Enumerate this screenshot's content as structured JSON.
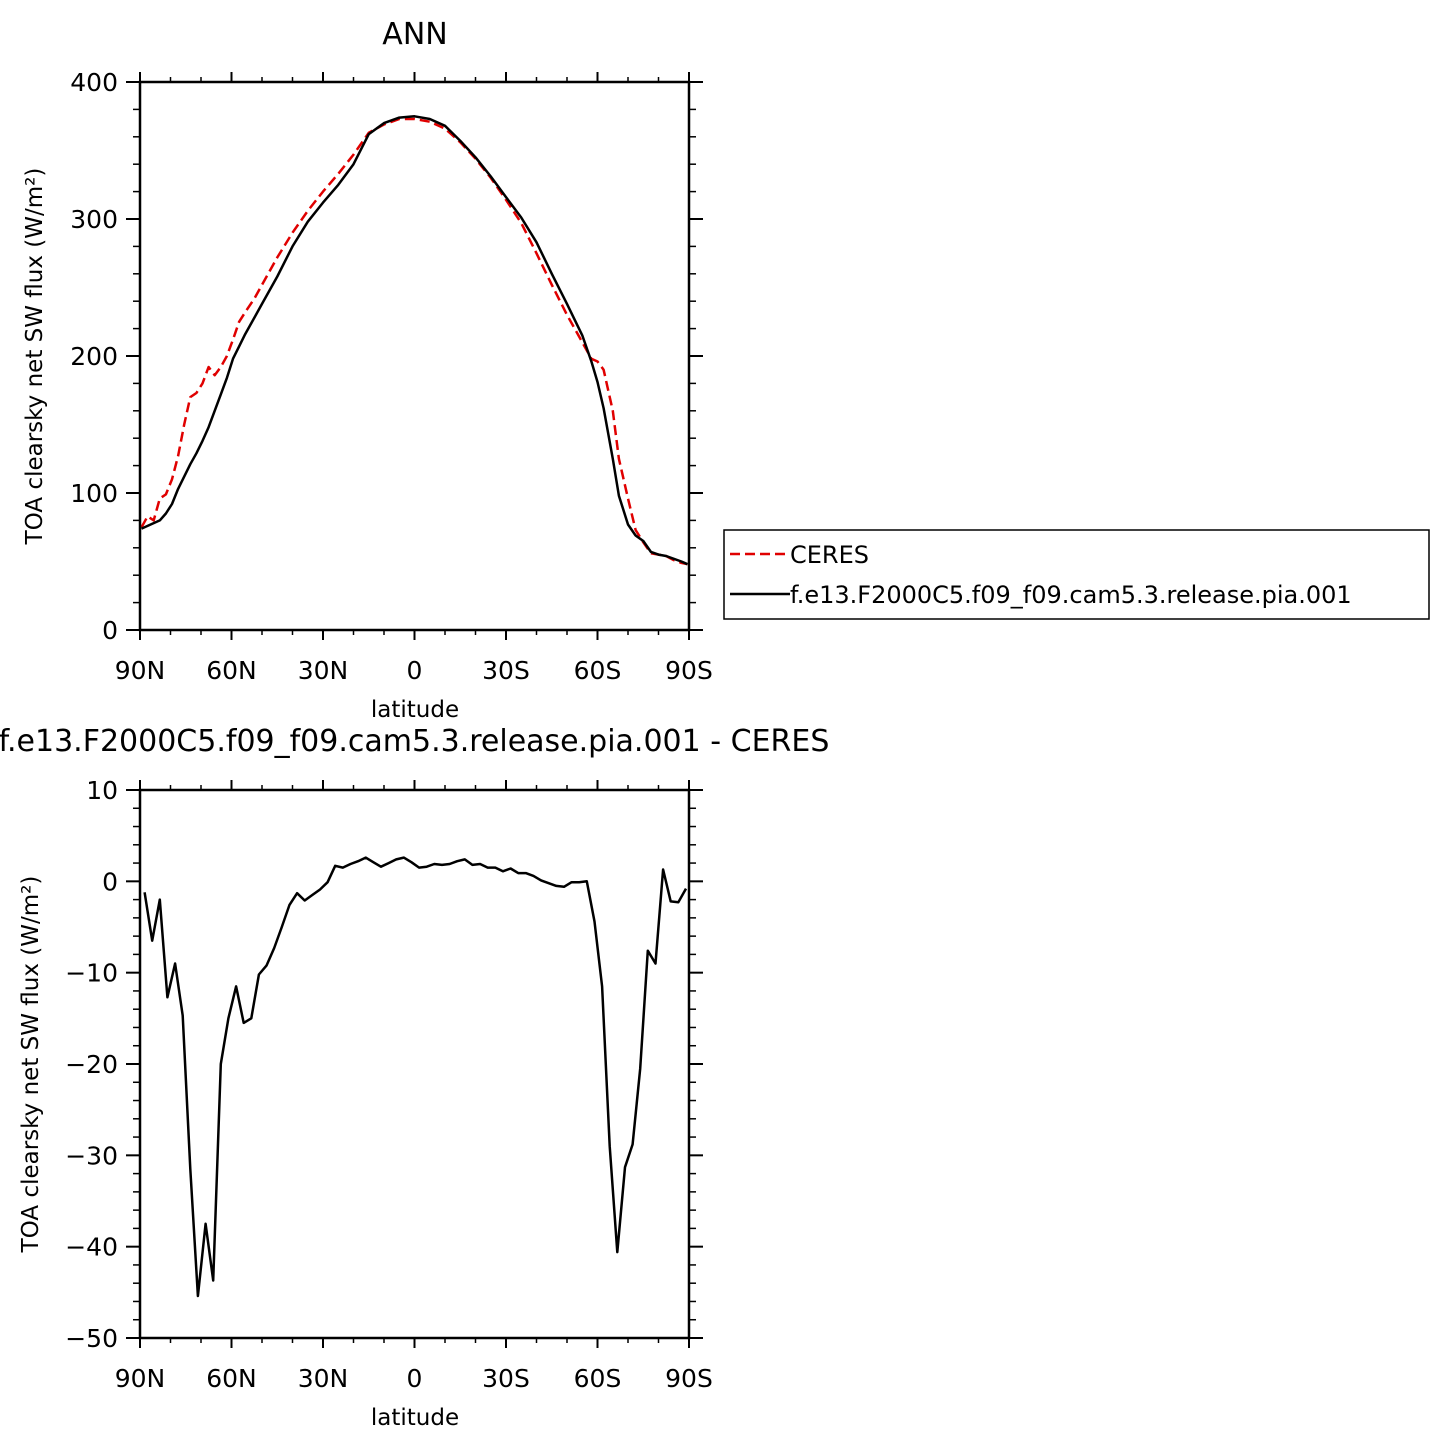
{
  "chart_data": [
    {
      "type": "line",
      "title": "ANN",
      "xlabel": "latitude",
      "ylabel": "TOA clearsky net SW flux (W/m²)",
      "xlim": [
        90,
        -90
      ],
      "ylim": [
        0,
        400
      ],
      "x_tick_labels": [
        "90N",
        "60N",
        "30N",
        "0",
        "30S",
        "60S",
        "90S"
      ],
      "x_tick_values": [
        90,
        60,
        30,
        0,
        -30,
        -60,
        -90
      ],
      "y_tick_labels": [
        "0",
        "100",
        "200",
        "300",
        "400"
      ],
      "y_tick_values": [
        0,
        100,
        200,
        300,
        400
      ],
      "legend_position": "right",
      "series": [
        {
          "name": "CERES",
          "color": "#e00000",
          "style": "dashed",
          "x": [
            89.5,
            87.5,
            85.5,
            83.5,
            81.5,
            79.5,
            77.5,
            75.5,
            73.5,
            71.5,
            69.5,
            67.5,
            65.5,
            63.5,
            61.5,
            59.5,
            57.5,
            55.5,
            52.5,
            50,
            45,
            40,
            35,
            30,
            25,
            20,
            15,
            10,
            5,
            0,
            -5,
            -10,
            -15,
            -20,
            -25,
            -30,
            -35,
            -40,
            -45,
            -50,
            -55,
            -58,
            -60,
            -62,
            -65,
            -67,
            -70,
            -72.5,
            -75,
            -77.5,
            -80,
            -82.5,
            -85,
            -87.5,
            -89.5
          ],
          "y": [
            75,
            83,
            80,
            96,
            99,
            110,
            127,
            150,
            170,
            173,
            180,
            192,
            186,
            192,
            200,
            212,
            225,
            232,
            242,
            252,
            272,
            290,
            306,
            320,
            333,
            347,
            363,
            369,
            373,
            373,
            371,
            366,
            356,
            344,
            330,
            314,
            297,
            275,
            252,
            230,
            210,
            198,
            196,
            190,
            160,
            125,
            96,
            73,
            64,
            56,
            55,
            54,
            51,
            49,
            48
          ]
        },
        {
          "name": "f.e13.F2000C5.f09_f09.cam5.3.release.pia.001",
          "color": "#000000",
          "style": "solid",
          "x": [
            89.5,
            87.5,
            85.5,
            83.5,
            81.5,
            79.5,
            77.5,
            75.5,
            73.5,
            71.5,
            69.5,
            67.5,
            65.5,
            63.5,
            61.5,
            59.5,
            57.5,
            55.5,
            52.5,
            50,
            45,
            40,
            35,
            30,
            25,
            20,
            15,
            10,
            5,
            0,
            -5,
            -10,
            -15,
            -20,
            -25,
            -30,
            -35,
            -40,
            -45,
            -50,
            -55,
            -58,
            -60,
            -62,
            -65,
            -67,
            -70,
            -72.5,
            -75,
            -77.5,
            -80,
            -82.5,
            -85,
            -87.5,
            -89.5
          ],
          "y": [
            74,
            76,
            78,
            80,
            85,
            92,
            103,
            112,
            121,
            129,
            138,
            148,
            160,
            172,
            184,
            198,
            207,
            216,
            228,
            238,
            258,
            280,
            298,
            312,
            325,
            340,
            362,
            370,
            374,
            375,
            373,
            368,
            357,
            345,
            331,
            316,
            301,
            283,
            260,
            238,
            215,
            196,
            181,
            162,
            125,
            98,
            77,
            69,
            65,
            57,
            55,
            54,
            52,
            50,
            48
          ]
        }
      ]
    },
    {
      "type": "line",
      "title": "f.e13.F2000C5.f09_f09.cam5.3.release.pia.001 - CERES",
      "xlabel": "latitude",
      "ylabel": "TOA clearsky net SW flux (W/m²)",
      "xlim": [
        90,
        -90
      ],
      "ylim": [
        -50,
        10
      ],
      "x_tick_labels": [
        "90N",
        "60N",
        "30N",
        "0",
        "30S",
        "60S",
        "90S"
      ],
      "x_tick_values": [
        90,
        60,
        30,
        0,
        -30,
        -60,
        -90
      ],
      "y_tick_labels": [
        "−50",
        "−40",
        "−30",
        "−20",
        "−10",
        "0",
        "10"
      ],
      "y_tick_values": [
        -50,
        -40,
        -30,
        -20,
        -10,
        0,
        10
      ],
      "series": [
        {
          "color": "#000000",
          "style": "solid",
          "x": [
            88.5,
            86,
            83.5,
            81,
            78.5,
            76,
            73.5,
            71,
            68.5,
            66,
            63.5,
            61,
            58.5,
            56,
            53.5,
            51,
            48.5,
            46,
            43.5,
            41,
            38.5,
            36,
            33.5,
            31,
            28.5,
            26,
            23.5,
            21,
            18.5,
            16,
            13.5,
            11,
            8.5,
            6,
            3.5,
            1,
            -1.5,
            -4,
            -6.5,
            -9,
            -11.5,
            -14,
            -16.5,
            -19,
            -21.5,
            -24,
            -26.5,
            -29,
            -31.5,
            -34,
            -36.5,
            -39,
            -41.5,
            -44,
            -46.5,
            -49,
            -51.5,
            -54,
            -56.5,
            -59,
            -61.5,
            -64,
            -66.5,
            -69,
            -71.5,
            -74,
            -76.5,
            -79,
            -81.5,
            -84,
            -86.5,
            -89
          ],
          "y": [
            -1.2,
            -6.5,
            -2,
            -12.7,
            -9,
            -14.7,
            -31.5,
            -45.4,
            -37.5,
            -43.7,
            -20,
            -15,
            -11.5,
            -15.5,
            -15,
            -10.2,
            -9.2,
            -7.3,
            -5,
            -2.6,
            -1.3,
            -2.1,
            -1.5,
            -0.9,
            -0.1,
            1.7,
            1.5,
            1.9,
            2.2,
            2.6,
            2.1,
            1.6,
            2,
            2.4,
            2.6,
            2.1,
            1.5,
            1.6,
            1.9,
            1.8,
            1.9,
            2.2,
            2.4,
            1.8,
            1.9,
            1.5,
            1.5,
            1.1,
            1.4,
            0.9,
            0.9,
            0.6,
            0.1,
            -0.2,
            -0.5,
            -0.6,
            -0.1,
            -0.1,
            0,
            -4.4,
            -11.5,
            -29,
            -40.6,
            -31.3,
            -28.8,
            -20.5,
            -7.6,
            -9,
            1.3,
            -2.2,
            -2.3,
            -0.8
          ]
        }
      ]
    }
  ]
}
